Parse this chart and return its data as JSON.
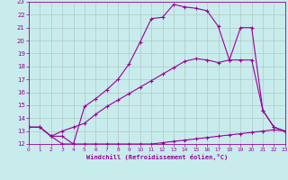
{
  "xlabel": "Windchill (Refroidissement éolien,°C)",
  "background_color": "#c8ecec",
  "line_color": "#990099",
  "grid_color": "#b0c8c8",
  "xlim": [
    0,
    23
  ],
  "ylim": [
    12,
    23
  ],
  "xticks": [
    0,
    1,
    2,
    3,
    4,
    5,
    6,
    7,
    8,
    9,
    10,
    11,
    12,
    13,
    14,
    15,
    16,
    17,
    18,
    19,
    20,
    21,
    22,
    23
  ],
  "yticks": [
    12,
    13,
    14,
    15,
    16,
    17,
    18,
    19,
    20,
    21,
    22,
    23
  ],
  "line1_x": [
    0,
    1,
    2,
    3,
    4,
    5,
    6,
    7,
    8,
    9,
    10,
    11,
    12,
    13,
    14,
    15,
    16,
    17,
    18,
    19,
    20,
    21,
    22,
    23
  ],
  "line1_y": [
    13.3,
    13.3,
    12.6,
    12.6,
    12.0,
    14.9,
    15.5,
    16.2,
    17.0,
    18.2,
    19.9,
    21.7,
    21.8,
    22.8,
    22.6,
    22.5,
    22.3,
    21.1,
    18.5,
    21.0,
    21.0,
    14.6,
    13.3,
    13.0
  ],
  "line2_x": [
    0,
    1,
    2,
    3,
    4,
    5,
    6,
    7,
    8,
    9,
    10,
    11,
    12,
    13,
    14,
    15,
    16,
    17,
    18,
    19,
    20,
    21,
    22,
    23
  ],
  "line2_y": [
    13.3,
    13.3,
    12.6,
    13.0,
    13.3,
    13.6,
    14.3,
    14.9,
    15.4,
    15.9,
    16.4,
    16.9,
    17.4,
    17.9,
    18.4,
    18.6,
    18.5,
    18.3,
    18.5,
    18.5,
    18.5,
    14.6,
    13.3,
    13.0
  ],
  "line3_x": [
    0,
    1,
    2,
    3,
    4,
    5,
    6,
    7,
    8,
    9,
    10,
    11,
    12,
    13,
    14,
    15,
    16,
    17,
    18,
    19,
    20,
    21,
    22,
    23
  ],
  "line3_y": [
    13.3,
    13.3,
    12.6,
    12.0,
    12.0,
    12.0,
    12.0,
    12.0,
    12.0,
    12.0,
    12.0,
    12.0,
    12.1,
    12.2,
    12.3,
    12.4,
    12.5,
    12.6,
    12.7,
    12.8,
    12.9,
    13.0,
    13.1,
    13.0
  ]
}
